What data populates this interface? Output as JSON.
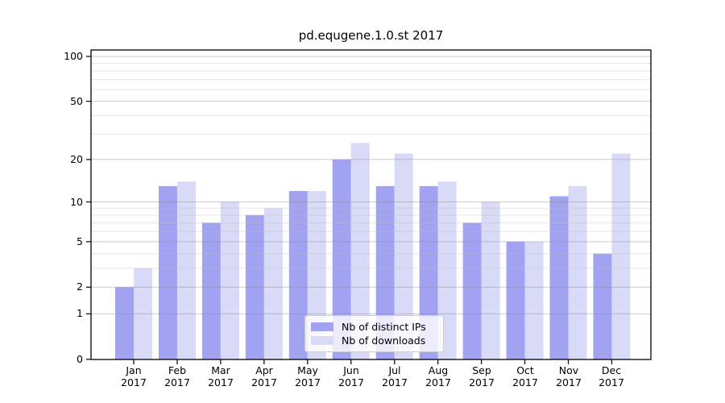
{
  "chart_data": {
    "type": "bar",
    "title": "pd.equgene.1.0.st 2017",
    "categories": [
      "Jan",
      "Feb",
      "Mar",
      "Apr",
      "May",
      "Jun",
      "Jul",
      "Aug",
      "Sep",
      "Oct",
      "Nov",
      "Dec"
    ],
    "x_year": "2017",
    "series": [
      {
        "name": "Nb of distinct IPs",
        "color": "#a2a2f2",
        "values": [
          2,
          13,
          7,
          8,
          12,
          20,
          13,
          13,
          7,
          5,
          11,
          4
        ]
      },
      {
        "name": "Nb of downloads",
        "color": "#d9d9f8",
        "values": [
          3,
          14,
          10,
          9,
          12,
          26,
          22,
          14,
          10,
          5,
          13,
          22
        ]
      }
    ],
    "y_axis": {
      "scale": "log1p",
      "ticks": [
        100,
        50,
        20,
        10,
        5,
        2,
        1,
        0
      ],
      "minor_gridlines": [
        3,
        4,
        6,
        7,
        8,
        9,
        30,
        40,
        60,
        70,
        80,
        90
      ],
      "range": [
        0,
        115
      ]
    },
    "legend_position": "bottom-center",
    "grid": true,
    "colors": {
      "frame": "#000000",
      "major_grid": "#cbcbcb",
      "minor_grid": "#e8e8e8",
      "background": "#ffffff"
    }
  }
}
